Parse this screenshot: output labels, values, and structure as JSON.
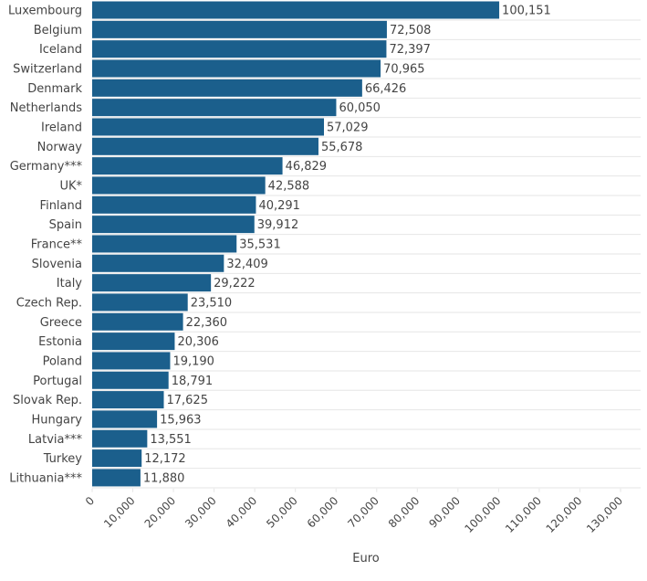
{
  "chart_data": {
    "type": "bar",
    "orientation": "horizontal",
    "title": "",
    "xlabel": "Euro",
    "ylabel": "",
    "xlim": [
      0,
      130000
    ],
    "grid": false,
    "bar_color": "#1b5f8c",
    "categories": [
      "Luxembourg",
      "Belgium",
      "Iceland",
      "Switzerland",
      "Denmark",
      "Netherlands",
      "Ireland",
      "Norway",
      "Germany***",
      "UK*",
      "Finland",
      "Spain",
      "France**",
      "Slovenia",
      "Italy",
      "Czech Rep.",
      "Greece",
      "Estonia",
      "Poland",
      "Portugal",
      "Slovak Rep.",
      "Hungary",
      "Latvia***",
      "Turkey",
      "Lithuania***"
    ],
    "values": [
      100151,
      72508,
      72397,
      70965,
      66426,
      60050,
      57029,
      55678,
      46829,
      42588,
      40291,
      39912,
      35531,
      32409,
      29222,
      23510,
      22360,
      20306,
      19190,
      18791,
      17625,
      15963,
      13551,
      12172,
      11880
    ],
    "value_labels": [
      "100,151",
      "72,508",
      "72,397",
      "70,965",
      "66,426",
      "60,050",
      "57,029",
      "55,678",
      "46,829",
      "42,588",
      "40,291",
      "39,912",
      "35,531",
      "32,409",
      "29,222",
      "23,510",
      "22,360",
      "20,306",
      "19,190",
      "18,791",
      "17,625",
      "15,963",
      "13,551",
      "12,172",
      "11,880"
    ],
    "x_ticks": [
      0,
      10000,
      20000,
      30000,
      40000,
      50000,
      60000,
      70000,
      80000,
      90000,
      100000,
      110000,
      120000,
      130000
    ],
    "x_tick_labels": [
      "0",
      "10,000",
      "20,000",
      "30,000",
      "40,000",
      "50,000",
      "60,000",
      "70,000",
      "80,000",
      "90,000",
      "100,000",
      "110,000",
      "120,000",
      "130,000"
    ]
  }
}
